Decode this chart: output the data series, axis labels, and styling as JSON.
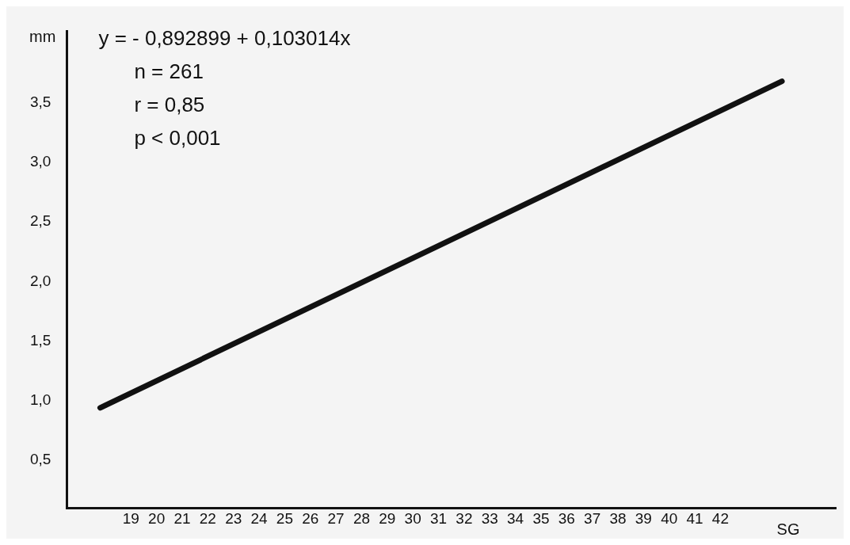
{
  "chart_data": {
    "type": "line",
    "x": [
      17.8,
      44.4
    ],
    "series": [
      {
        "color": "#111111",
        "values": [
          0.94,
          3.68
        ]
      }
    ],
    "xlim": [
      16.5,
      46.5
    ],
    "ylim": [
      0.1,
      4.1
    ],
    "xticks": [
      19,
      20,
      21,
      22,
      23,
      24,
      25,
      26,
      27,
      28,
      29,
      30,
      31,
      32,
      33,
      34,
      35,
      36,
      37,
      38,
      39,
      40,
      41,
      42
    ],
    "yticks": [
      {
        "value": 0.5,
        "label": "0,5"
      },
      {
        "value": 1.0,
        "label": "1,0"
      },
      {
        "value": 1.5,
        "label": "1,5"
      },
      {
        "value": 2.0,
        "label": "2,0"
      },
      {
        "value": 2.5,
        "label": "2,5"
      },
      {
        "value": 3.0,
        "label": "3,0"
      },
      {
        "value": 3.5,
        "label": "3,5"
      }
    ],
    "xlabel": "SG",
    "ylabel": "mm",
    "annotations": [
      "y = - 0,892899 + 0,103014x",
      "n = 261",
      "r = 0,85",
      "p < 0,001"
    ],
    "grid": false,
    "legend": false,
    "marker": "none",
    "line_style": "solid"
  }
}
